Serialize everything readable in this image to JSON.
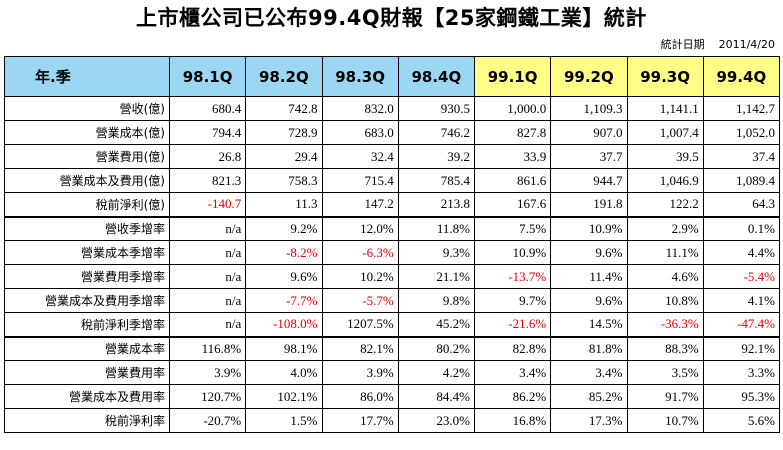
{
  "title": "上市櫃公司已公布99.4Q財報【25家鋼鐵工業】統計",
  "date_label": "統計日期",
  "date_value": "2011/4/20",
  "header_label": "年.季",
  "quarters": [
    "98.1Q",
    "98.2Q",
    "98.3Q",
    "98.4Q",
    "99.1Q",
    "99.2Q",
    "99.3Q",
    "99.4Q"
  ],
  "rows": [
    {
      "label": "營收(億)",
      "values": [
        "680.4",
        "742.8",
        "832.0",
        "930.5",
        "1,000.0",
        "1,109.3",
        "1,141.1",
        "1,142.7"
      ]
    },
    {
      "label": "營業成本(億)",
      "values": [
        "794.4",
        "728.9",
        "683.0",
        "746.2",
        "827.8",
        "907.0",
        "1,007.4",
        "1,052.0"
      ]
    },
    {
      "label": "營業費用(億)",
      "values": [
        "26.8",
        "29.4",
        "32.4",
        "39.2",
        "33.9",
        "37.7",
        "39.5",
        "37.4"
      ]
    },
    {
      "label": "營業成本及費用(億)",
      "values": [
        "821.3",
        "758.3",
        "715.4",
        "785.4",
        "861.6",
        "944.7",
        "1,046.9",
        "1,089.4"
      ]
    },
    {
      "label": "稅前淨利(億)",
      "values": [
        "-140.7",
        "11.3",
        "147.2",
        "213.8",
        "167.6",
        "191.8",
        "122.2",
        "64.3"
      ]
    },
    {
      "label": "營收季增率",
      "values": [
        "n/a",
        "9.2%",
        "12.0%",
        "11.8%",
        "7.5%",
        "10.9%",
        "2.9%",
        "0.1%"
      ]
    },
    {
      "label": "營業成本季增率",
      "values": [
        "n/a",
        "-8.2%",
        "-6.3%",
        "9.3%",
        "10.9%",
        "9.6%",
        "11.1%",
        "4.4%"
      ]
    },
    {
      "label": "營業費用季增率",
      "values": [
        "n/a",
        "9.6%",
        "10.2%",
        "21.1%",
        "-13.7%",
        "11.4%",
        "4.6%",
        "-5.4%"
      ]
    },
    {
      "label": "營業成本及費用季增率",
      "values": [
        "n/a",
        "-7.7%",
        "-5.7%",
        "9.8%",
        "9.7%",
        "9.6%",
        "10.8%",
        "4.1%"
      ]
    },
    {
      "label": "稅前淨利季增率",
      "values": [
        "n/a",
        "-108.0%",
        "1207.5%",
        "45.2%",
        "-21.6%",
        "14.5%",
        "-36.3%",
        "-47.4%"
      ]
    },
    {
      "label": "營業成本率",
      "values": [
        "116.8%",
        "98.1%",
        "82.1%",
        "80.2%",
        "82.8%",
        "81.8%",
        "88.3%",
        "92.1%"
      ]
    },
    {
      "label": "營業費用率",
      "values": [
        "3.9%",
        "4.0%",
        "3.9%",
        "4.2%",
        "3.4%",
        "3.4%",
        "3.5%",
        "3.3%"
      ]
    },
    {
      "label": "營業成本及費用率",
      "values": [
        "120.7%",
        "102.1%",
        "86.0%",
        "84.4%",
        "86.2%",
        "85.2%",
        "91.7%",
        "95.3%"
      ]
    },
    {
      "label": "稅前淨利率",
      "values": [
        "-20.7%",
        "1.5%",
        "17.7%",
        "23.0%",
        "16.8%",
        "17.3%",
        "10.7%",
        "5.6%"
      ]
    }
  ],
  "negative_color": "#e00000",
  "header_color_98": "#9bd7f3",
  "header_color_99": "#ffff88"
}
